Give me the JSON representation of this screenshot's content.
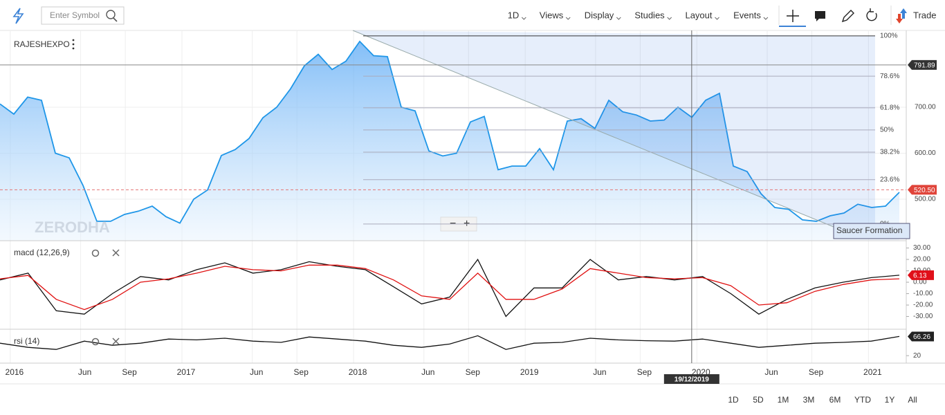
{
  "toolbar": {
    "search_placeholder": "Enter Symbol",
    "menus": [
      "1D",
      "Views",
      "Display",
      "Studies",
      "Layout",
      "Events"
    ],
    "trade": "Trade"
  },
  "chart_data": [
    {
      "type": "line",
      "symbol": "RAJESHEXPO",
      "watermark": "ZERODHA",
      "color": "#1e96e8",
      "xlim": [
        2015.94,
        2021.2
      ],
      "xticks": [
        2016,
        {
          "value": 2016.41,
          "label": "Jun"
        },
        {
          "value": 2016.67,
          "label": "Sep"
        },
        2017,
        {
          "value": 2017.41,
          "label": "Jun"
        },
        {
          "value": 2017.67,
          "label": "Sep"
        },
        2018,
        {
          "value": 2018.41,
          "label": "Jun"
        },
        {
          "value": 2018.67,
          "label": "Sep"
        },
        2019,
        {
          "value": 2019.41,
          "label": "Jun"
        },
        {
          "value": 2019.67,
          "label": "Sep"
        },
        2020,
        {
          "value": 2020.41,
          "label": "Jun"
        },
        {
          "value": 2020.67,
          "label": "Sep"
        },
        2021
      ],
      "ylim": [
        409.8,
        866.9
      ],
      "yticks": [
        {
          "value": 500,
          "label": "500.00"
        },
        {
          "value": 600,
          "label": "600.00"
        },
        {
          "value": 700,
          "label": "700.00"
        }
      ],
      "grid": true,
      "values": [
        707,
        685,
        722,
        715,
        600,
        590,
        530,
        452,
        452,
        467,
        474,
        485,
        462,
        448,
        500,
        520,
        595,
        608,
        632,
        677,
        700,
        740,
        790,
        815,
        782,
        800,
        843,
        812,
        810,
        700,
        692,
        605,
        594,
        600,
        668,
        680,
        564,
        572,
        572,
        610,
        564,
        670,
        675,
        654,
        715,
        690,
        683,
        670,
        672,
        700,
        678,
        715,
        730,
        572,
        560,
        512,
        482,
        478,
        455,
        452,
        464,
        470,
        489,
        482,
        485,
        515
      ],
      "last_price": {
        "value": 520.5,
        "label": "520.50"
      },
      "price_line": {
        "value": 791.89,
        "label": "791.89"
      },
      "fib": {
        "high": 855,
        "low": 446,
        "levels": [
          {
            "value": 100,
            "label": "100%"
          },
          {
            "value": 78.6,
            "label": "78.6%"
          },
          {
            "value": 61.8,
            "label": "61.8%"
          },
          {
            "value": 50,
            "label": "50%"
          },
          {
            "value": 38.2,
            "label": "38.2%"
          },
          {
            "value": 23.6,
            "label": "23.6%"
          },
          {
            "value": 0,
            "label": "0%"
          }
        ]
      },
      "annotation": "Saucer Formation",
      "crosshair": {
        "value": 2019.97,
        "label": "19/12/2019"
      }
    },
    {
      "type": "line",
      "name": "macd (12,26,9)",
      "ylim": [
        -41.2,
        35.8
      ],
      "yticks": [
        {
          "value": 30,
          "label": "30.00"
        },
        {
          "value": 20,
          "label": "20.00"
        },
        {
          "value": 10,
          "label": "10.00"
        },
        {
          "value": 0,
          "label": "0.00"
        },
        {
          "value": -10,
          "label": "-10.00"
        },
        {
          "value": -20,
          "label": "-20.00"
        },
        {
          "value": -30,
          "label": "-30.00"
        }
      ],
      "series": [
        {
          "color": "#111111",
          "values": [
            2,
            8,
            -25,
            -28,
            -10,
            5,
            2,
            11,
            17,
            8,
            11,
            18,
            14,
            11,
            -4,
            -19,
            -13,
            20,
            -30,
            -5,
            -5,
            20,
            2,
            5,
            2,
            5,
            -10,
            -28,
            -15,
            -5,
            0,
            4,
            6.13
          ]
        },
        {
          "color": "#e01010",
          "values": [
            3,
            6,
            -15,
            -24,
            -15,
            0,
            3,
            8,
            14,
            11,
            10,
            15,
            15,
            12,
            2,
            -12,
            -15,
            8,
            -15,
            -15,
            -6,
            12,
            8,
            4,
            3,
            4,
            -3,
            -20,
            -18,
            -8,
            -2,
            2,
            3
          ]
        }
      ],
      "last": {
        "value": 6.13,
        "label": "6.13"
      }
    },
    {
      "type": "line",
      "name": "rsi (14)",
      "ylim": [
        2,
        82
      ],
      "yticks": [
        20
      ],
      "series": [
        {
          "color": "#111111",
          "values": [
            50,
            40,
            35,
            55,
            45,
            50,
            60,
            58,
            62,
            55,
            52,
            65,
            60,
            55,
            45,
            40,
            48,
            68,
            35,
            50,
            52,
            62,
            58,
            56,
            55,
            60,
            50,
            40,
            45,
            50,
            52,
            55,
            66.26
          ]
        }
      ],
      "last": {
        "value": 66.26,
        "label": "66.26"
      }
    }
  ],
  "ranges": [
    "1D",
    "5D",
    "1M",
    "3M",
    "6M",
    "YTD",
    "1Y",
    "All"
  ]
}
